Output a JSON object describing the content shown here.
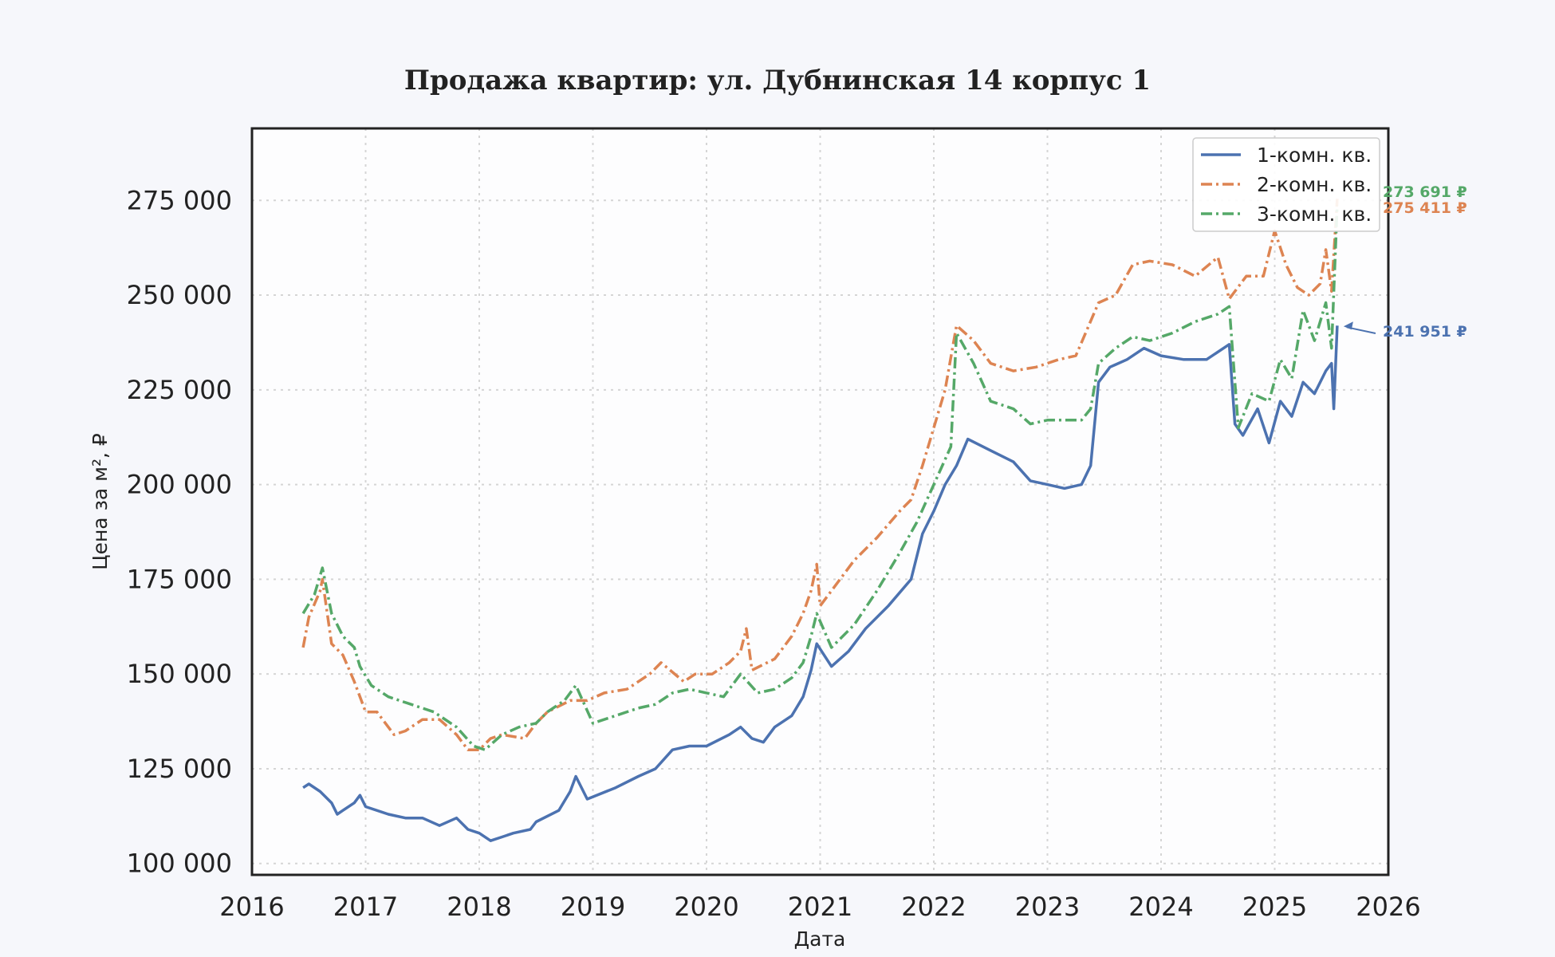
{
  "chart_data": {
    "type": "line",
    "title": "Продажа квартир: ул. Дубнинская 14 корпус 1",
    "xlabel": "Дата",
    "ylabel": "Цена за м², ₽",
    "xlim": [
      2016.0,
      2026.0
    ],
    "ylim": [
      97000,
      294000
    ],
    "xticks": [
      "2016",
      "2017",
      "2018",
      "2019",
      "2020",
      "2021",
      "2022",
      "2023",
      "2024",
      "2025",
      "2026"
    ],
    "yticks": [
      "100 000",
      "125 000",
      "150 000",
      "175 000",
      "200 000",
      "225 000",
      "250 000",
      "275 000"
    ],
    "grid": true,
    "legend_position": "top-right",
    "series": [
      {
        "name": "1-комн. кв.",
        "color": "#4c72b0",
        "style": "solid",
        "end_label": "241 951 ₽",
        "x": [
          2016.45,
          2016.5,
          2016.6,
          2016.7,
          2016.75,
          2016.8,
          2016.9,
          2016.95,
          2017.0,
          2017.2,
          2017.35,
          2017.5,
          2017.65,
          2017.8,
          2017.9,
          2018.0,
          2018.1,
          2018.2,
          2018.3,
          2018.45,
          2018.5,
          2018.7,
          2018.8,
          2018.85,
          2018.95,
          2019.2,
          2019.4,
          2019.55,
          2019.7,
          2019.85,
          2020.0,
          2020.2,
          2020.3,
          2020.4,
          2020.5,
          2020.6,
          2020.75,
          2020.85,
          2020.92,
          2020.97,
          2021.1,
          2021.25,
          2021.4,
          2021.6,
          2021.8,
          2021.9,
          2022.0,
          2022.1,
          2022.2,
          2022.3,
          2022.5,
          2022.7,
          2022.85,
          2023.0,
          2023.15,
          2023.3,
          2023.38,
          2023.45,
          2023.55,
          2023.7,
          2023.85,
          2024.0,
          2024.2,
          2024.4,
          2024.6,
          2024.65,
          2024.72,
          2024.85,
          2024.95,
          2025.05,
          2025.15,
          2025.25,
          2025.35,
          2025.45,
          2025.5,
          2025.52,
          2025.55
        ],
        "y": [
          120000,
          121000,
          119000,
          116000,
          113000,
          114000,
          116000,
          118000,
          115000,
          113000,
          112000,
          112000,
          110000,
          112000,
          109000,
          108000,
          106000,
          107000,
          108000,
          109000,
          111000,
          114000,
          119000,
          123000,
          117000,
          120000,
          123000,
          125000,
          130000,
          131000,
          131000,
          134000,
          136000,
          133000,
          132000,
          136000,
          139000,
          144000,
          151000,
          158000,
          152000,
          156000,
          162000,
          168000,
          175000,
          187000,
          193000,
          200000,
          205000,
          212000,
          209000,
          206000,
          201000,
          200000,
          199000,
          200000,
          205000,
          227000,
          231000,
          233000,
          236000,
          234000,
          233000,
          233000,
          237000,
          216000,
          213000,
          220000,
          211000,
          222000,
          218000,
          227000,
          224000,
          230000,
          232000,
          220000,
          241951
        ]
      },
      {
        "name": "2-комн. кв.",
        "color": "#dd8452",
        "style": "dashdot",
        "end_label": "275 411 ₽",
        "x": [
          2016.45,
          2016.5,
          2016.6,
          2016.62,
          2016.7,
          2016.8,
          2016.9,
          2017.0,
          2017.1,
          2017.25,
          2017.35,
          2017.5,
          2017.65,
          2017.8,
          2017.9,
          2018.0,
          2018.1,
          2018.2,
          2018.4,
          2018.5,
          2018.6,
          2018.8,
          2018.95,
          2019.1,
          2019.3,
          2019.5,
          2019.6,
          2019.8,
          2019.9,
          2020.05,
          2020.2,
          2020.3,
          2020.35,
          2020.4,
          2020.6,
          2020.75,
          2020.85,
          2020.92,
          2020.97,
          2021.0,
          2021.1,
          2021.3,
          2021.5,
          2021.7,
          2021.8,
          2021.9,
          2022.0,
          2022.1,
          2022.2,
          2022.35,
          2022.5,
          2022.7,
          2022.9,
          2023.1,
          2023.25,
          2023.35,
          2023.45,
          2023.6,
          2023.75,
          2023.9,
          2024.1,
          2024.3,
          2024.5,
          2024.6,
          2024.75,
          2024.9,
          2025.0,
          2025.1,
          2025.2,
          2025.3,
          2025.4,
          2025.45,
          2025.5,
          2025.55
        ],
        "y": [
          157000,
          165000,
          172000,
          175000,
          158000,
          155000,
          148000,
          140000,
          140000,
          134000,
          135000,
          138000,
          138000,
          134000,
          130000,
          130000,
          133000,
          134000,
          133000,
          137000,
          140000,
          143000,
          143000,
          145000,
          146000,
          150000,
          153000,
          148000,
          150000,
          150000,
          153000,
          156000,
          162000,
          151000,
          154000,
          160000,
          166000,
          172000,
          179000,
          168000,
          172000,
          180000,
          186000,
          193000,
          196000,
          205000,
          215000,
          225000,
          242000,
          238000,
          232000,
          230000,
          231000,
          233000,
          234000,
          241000,
          248000,
          250000,
          258000,
          259000,
          258000,
          255000,
          260000,
          249000,
          255000,
          255000,
          267000,
          258000,
          252000,
          250000,
          253000,
          262000,
          251000,
          275411
        ]
      },
      {
        "name": "3-комн. кв.",
        "color": "#55a868",
        "style": "dashdot",
        "end_label": "273 691 ₽",
        "x": [
          2016.45,
          2016.55,
          2016.62,
          2016.7,
          2016.8,
          2016.9,
          2016.95,
          2017.05,
          2017.2,
          2017.4,
          2017.6,
          2017.8,
          2017.95,
          2018.05,
          2018.2,
          2018.35,
          2018.5,
          2018.6,
          2018.75,
          2018.85,
          2019.0,
          2019.2,
          2019.4,
          2019.55,
          2019.7,
          2019.85,
          2020.0,
          2020.15,
          2020.3,
          2020.45,
          2020.6,
          2020.75,
          2020.85,
          2020.92,
          2020.97,
          2021.1,
          2021.3,
          2021.5,
          2021.7,
          2021.85,
          2022.0,
          2022.15,
          2022.2,
          2022.35,
          2022.5,
          2022.7,
          2022.85,
          2023.0,
          2023.15,
          2023.3,
          2023.38,
          2023.45,
          2023.6,
          2023.75,
          2023.9,
          2024.1,
          2024.3,
          2024.5,
          2024.6,
          2024.68,
          2024.8,
          2024.95,
          2025.05,
          2025.15,
          2025.25,
          2025.35,
          2025.45,
          2025.5,
          2025.55
        ],
        "y": [
          166000,
          171000,
          178000,
          166000,
          160000,
          157000,
          152000,
          147000,
          144000,
          142000,
          140000,
          136000,
          131000,
          130000,
          134000,
          136000,
          137000,
          140000,
          143000,
          147000,
          137000,
          139000,
          141000,
          142000,
          145000,
          146000,
          145000,
          144000,
          150000,
          145000,
          146000,
          149000,
          153000,
          160000,
          166000,
          157000,
          163000,
          172000,
          182000,
          190000,
          200000,
          210000,
          240000,
          232000,
          222000,
          220000,
          216000,
          217000,
          217000,
          217000,
          220000,
          232000,
          236000,
          239000,
          238000,
          240000,
          243000,
          245000,
          247000,
          215000,
          224000,
          222000,
          233000,
          228000,
          246000,
          238000,
          248000,
          236000,
          273691
        ]
      }
    ]
  }
}
